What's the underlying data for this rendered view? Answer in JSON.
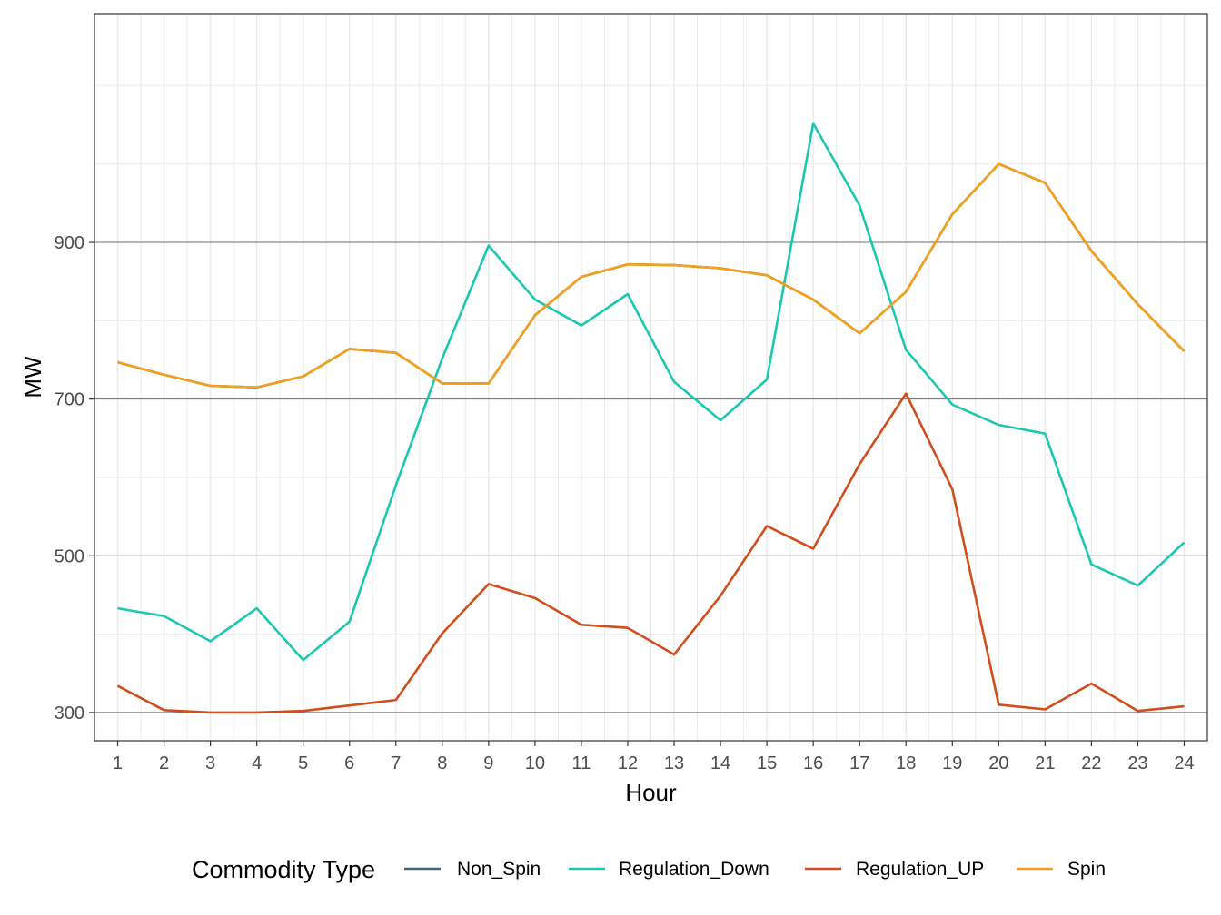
{
  "chart_data": {
    "type": "line",
    "title": "",
    "xlabel": "Hour",
    "ylabel": "MW",
    "x": [
      1,
      2,
      3,
      4,
      5,
      6,
      7,
      8,
      9,
      10,
      11,
      12,
      13,
      14,
      15,
      16,
      17,
      18,
      19,
      20,
      21,
      22,
      23,
      24
    ],
    "x_tick_labels": [
      "1",
      "2",
      "3",
      "4",
      "5",
      "6",
      "7",
      "8",
      "9",
      "10",
      "11",
      "12",
      "13",
      "14",
      "15",
      "16",
      "17",
      "18",
      "19",
      "20",
      "21",
      "22",
      "23",
      "24"
    ],
    "y_ticks": [
      300,
      500,
      700,
      900
    ],
    "y_tick_labels": [
      "300",
      "500",
      "700",
      "900"
    ],
    "ylim": [
      264,
      1192
    ],
    "xlim": [
      0.5,
      24.5
    ],
    "grid": true,
    "legend_position": "bottom",
    "legend_title": "Commodity Type",
    "series": [
      {
        "name": "Non_Spin",
        "color": "#3b6a80",
        "values": [
          747,
          731,
          717,
          715,
          729,
          764,
          759,
          720,
          720,
          807,
          856,
          872,
          871,
          867,
          858,
          827,
          784,
          837,
          936,
          1000,
          976,
          889,
          821,
          761
        ]
      },
      {
        "name": "Regulation_Down",
        "color": "#1cc7b1",
        "values": [
          433,
          423,
          391,
          433,
          367,
          416,
          590,
          752,
          896,
          827,
          794,
          834,
          722,
          673,
          725,
          1052,
          947,
          763,
          693,
          667,
          656,
          489,
          462,
          517
        ]
      },
      {
        "name": "Regulation_UP",
        "color": "#d24d1d",
        "values": [
          334,
          303,
          300,
          300,
          302,
          309,
          316,
          401,
          464,
          446,
          412,
          408,
          374,
          449,
          538,
          509,
          617,
          707,
          585,
          310,
          304,
          337,
          302,
          308
        ]
      },
      {
        "name": "Spin",
        "color": "#f4a01a",
        "values": [
          747,
          731,
          717,
          715,
          729,
          764,
          759,
          720,
          720,
          807,
          856,
          872,
          871,
          867,
          858,
          827,
          784,
          837,
          936,
          1000,
          976,
          889,
          821,
          761
        ]
      }
    ]
  }
}
